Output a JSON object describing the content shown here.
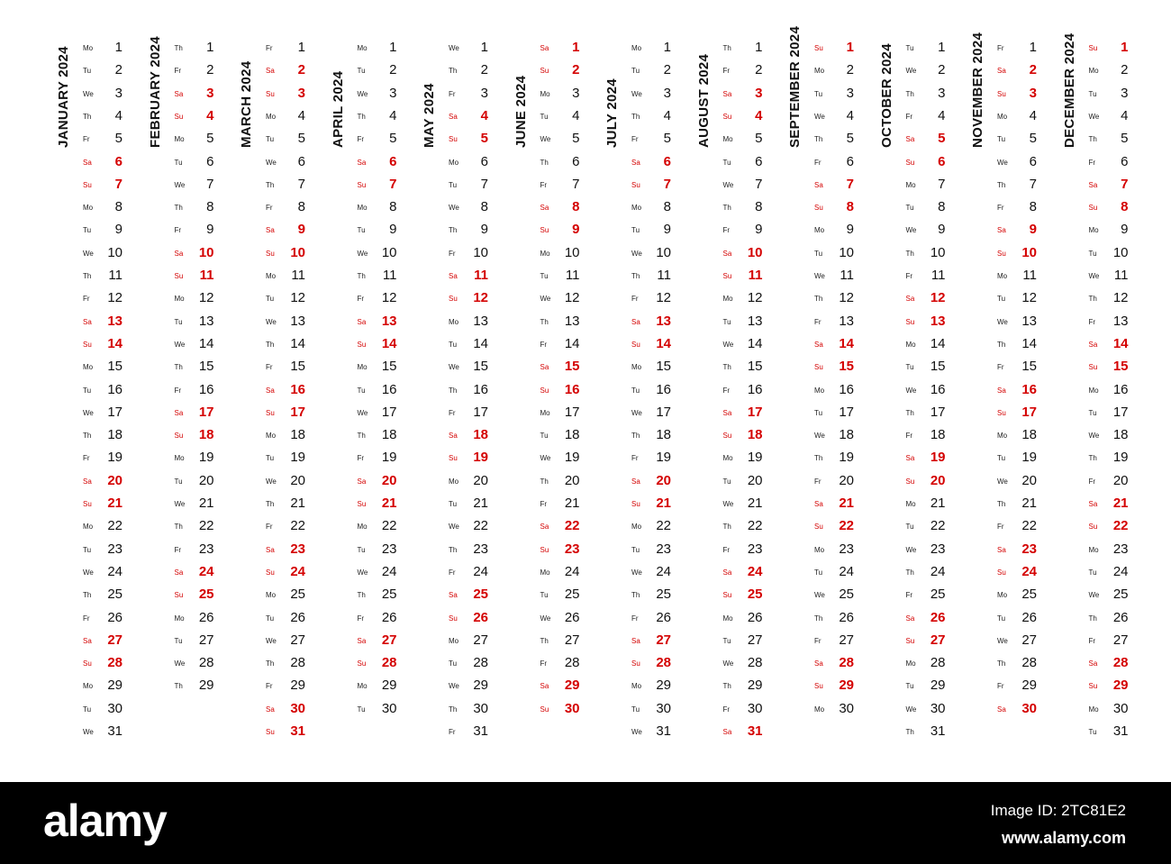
{
  "months": [
    {
      "title": "JANUARY 2024",
      "start_weekday": 0,
      "days": 31
    },
    {
      "title": "FEBRUARY 2024",
      "start_weekday": 3,
      "days": 29
    },
    {
      "title": "MARCH 2024",
      "start_weekday": 4,
      "days": 31
    },
    {
      "title": "APRIL 2024",
      "start_weekday": 0,
      "days": 30
    },
    {
      "title": "MAY 2024",
      "start_weekday": 2,
      "days": 31
    },
    {
      "title": "JUNE 2024",
      "start_weekday": 5,
      "days": 30
    },
    {
      "title": "JULY 2024",
      "start_weekday": 0,
      "days": 31
    },
    {
      "title": "AUGUST 2024",
      "start_weekday": 3,
      "days": 31
    },
    {
      "title": "SEPTEMBER 2024",
      "start_weekday": 6,
      "days": 30
    },
    {
      "title": "OCTOBER 2024",
      "start_weekday": 1,
      "days": 31
    },
    {
      "title": "NOVEMBER 2024",
      "start_weekday": 4,
      "days": 30
    },
    {
      "title": "DECEMBER 2024",
      "start_weekday": 6,
      "days": 31
    }
  ],
  "weekday_abbrevs": [
    "Mo",
    "Tu",
    "We",
    "Th",
    "Fr",
    "Sa",
    "Su"
  ],
  "weekend_color": "#d40000",
  "weekday_color": "#111111",
  "footer": {
    "logo": "alamy",
    "image_id": "Image ID: 2TC81E2",
    "site": "www.alamy.com"
  }
}
